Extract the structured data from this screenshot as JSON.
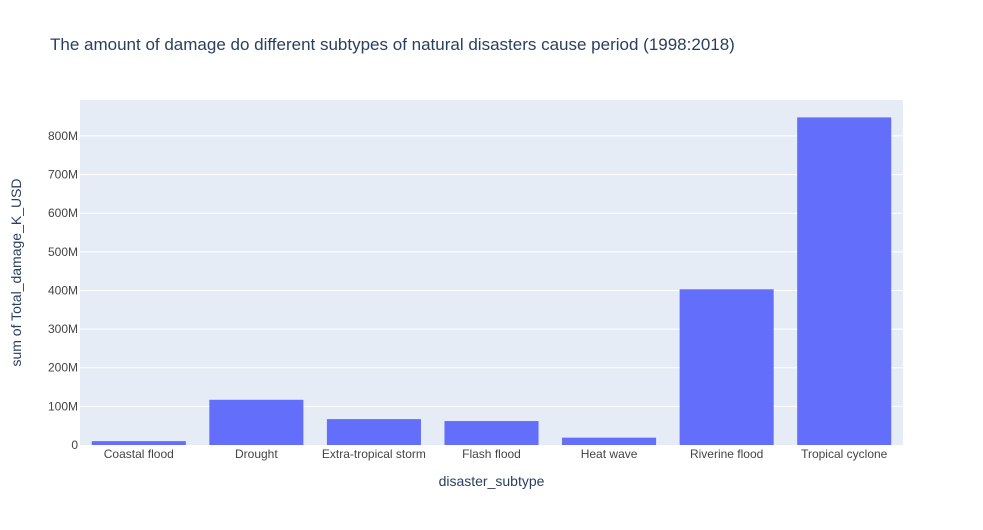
{
  "chart_data": {
    "type": "bar",
    "title": "The amount of damage do different subtypes of natural disasters cause period (1998:2018)",
    "xlabel": "disaster_subtype",
    "ylabel": "sum of Total_damage_K_USD",
    "categories": [
      "Coastal flood",
      "Drought",
      "Extra-tropical storm",
      "Flash flood",
      "Heat wave",
      "Riverine flood",
      "Tropical cyclone"
    ],
    "values": [
      10000000,
      117000000,
      67000000,
      62000000,
      19000000,
      403000000,
      848000000
    ],
    "ylim": [
      0,
      893000000
    ],
    "yticks": [
      0,
      100000000,
      200000000,
      300000000,
      400000000,
      500000000,
      600000000,
      700000000,
      800000000
    ],
    "ytick_labels": [
      "0",
      "100M",
      "200M",
      "300M",
      "400M",
      "500M",
      "600M",
      "700M",
      "800M"
    ],
    "grid": true,
    "colors": {
      "bar": "#636efa",
      "plot_bg": "#e5ecf6",
      "grid": "#ffffff",
      "text": "#2a3f5f",
      "tick_text": "#444444"
    }
  }
}
